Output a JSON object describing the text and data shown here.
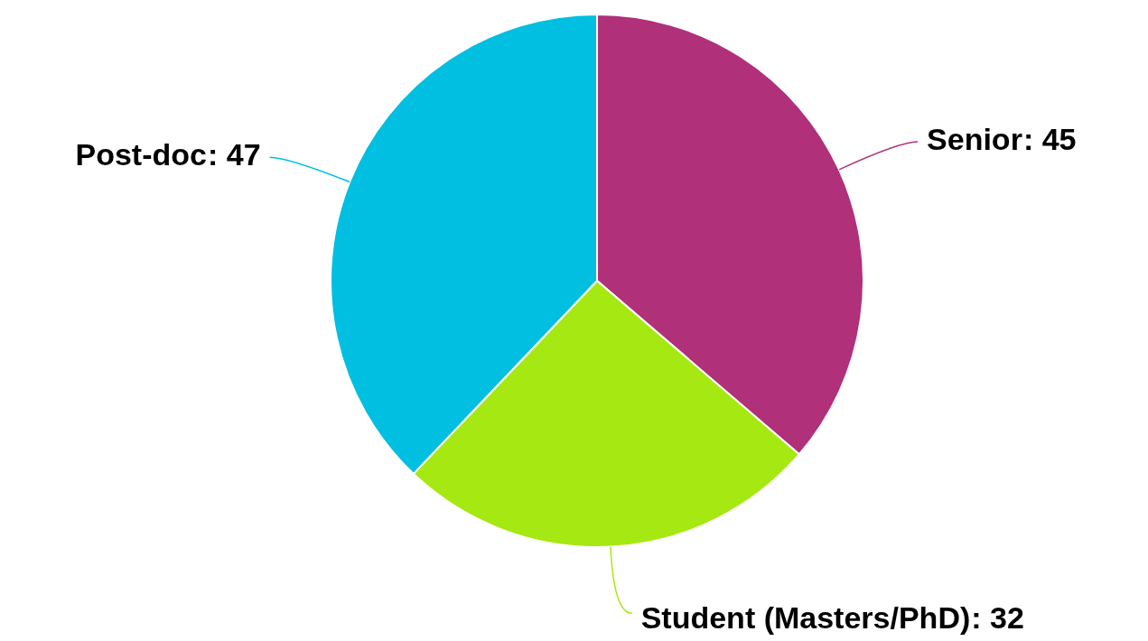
{
  "chart_data": {
    "type": "pie",
    "categories": [
      "Senior",
      "Student (Masters/PhD)",
      "Post-doc"
    ],
    "values": [
      45,
      32,
      47
    ],
    "value_labels": [
      ": 45",
      ": 32",
      ": 47"
    ],
    "colors": [
      "#b03079",
      "#a6e811",
      "#00bfe0"
    ],
    "legend": false
  }
}
